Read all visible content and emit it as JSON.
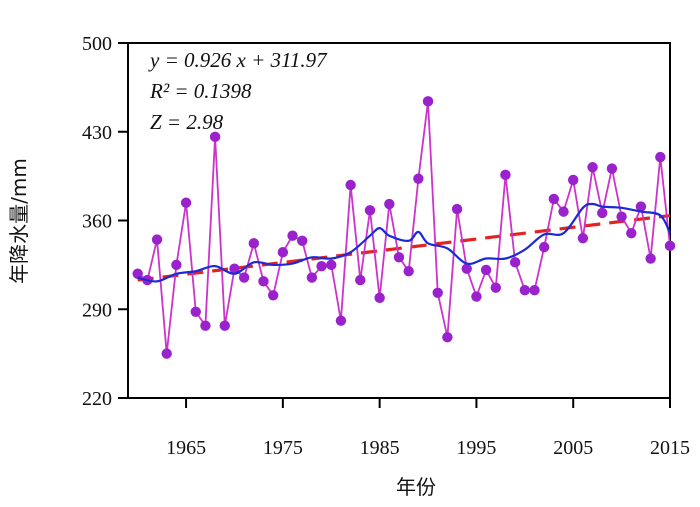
{
  "chart_data": {
    "type": "line",
    "title": "",
    "xlabel": "年份",
    "ylabel": "年降水量/mm",
    "xlim": [
      1959,
      2015
    ],
    "ylim": [
      220,
      500
    ],
    "x_ticks": [
      1965,
      1975,
      1985,
      1995,
      2005,
      2015
    ],
    "y_ticks": [
      220,
      290,
      360,
      430,
      500
    ],
    "annotations": [
      "y = 0.926 x + 311.97",
      "R² = 0.1398",
      "Z = 2.98"
    ],
    "grid": false,
    "colors": {
      "observed": "#cc33cc",
      "marker": "#9922cc",
      "trend": "#e52222",
      "smooth": "#1a2bd6"
    },
    "series": [
      {
        "style": "line+markers",
        "x": [
          1960,
          1961,
          1962,
          1963,
          1964,
          1965,
          1966,
          1967,
          1968,
          1969,
          1970,
          1971,
          1972,
          1973,
          1974,
          1975,
          1976,
          1977,
          1978,
          1979,
          1980,
          1981,
          1982,
          1983,
          1984,
          1985,
          1986,
          1987,
          1988,
          1989,
          1990,
          1991,
          1992,
          1993,
          1994,
          1995,
          1996,
          1997,
          1998,
          1999,
          2000,
          2001,
          2002,
          2003,
          2004,
          2005,
          2006,
          2007,
          2008,
          2009,
          2010,
          2011,
          2012,
          2013,
          2014,
          2015
        ],
        "y": [
          318,
          313,
          345,
          255,
          325,
          374,
          288,
          277,
          426,
          277,
          322,
          315,
          342,
          312,
          301,
          335,
          348,
          344,
          315,
          324,
          325,
          281,
          388,
          313,
          368,
          299,
          373,
          331,
          320,
          393,
          454,
          303,
          268,
          369,
          322,
          300,
          321,
          307,
          396,
          327,
          305,
          305,
          339,
          377,
          367,
          392,
          346,
          402,
          366,
          401,
          363,
          350,
          371,
          330,
          410,
          340
        ]
      },
      {
        "style": "dashed",
        "x": [
          1960,
          2015
        ],
        "y": [
          313.0,
          363.9
        ]
      },
      {
        "style": "smooth",
        "x": [
          1960,
          1962,
          1964,
          1966,
          1968,
          1970,
          1972,
          1974,
          1976,
          1978,
          1980,
          1982,
          1984,
          1985,
          1986,
          1988,
          1989,
          1990,
          1992,
          1994,
          1996,
          1998,
          2000,
          2002,
          2004,
          2006,
          2007,
          2008,
          2010,
          2012,
          2014,
          2015
        ],
        "y": [
          315,
          312,
          318,
          320,
          324,
          318,
          327,
          325,
          326,
          331,
          330,
          335,
          348,
          354,
          348,
          344,
          351,
          342,
          338,
          326,
          330,
          330,
          337,
          349,
          350,
          370,
          373,
          371,
          370,
          367,
          364,
          350
        ]
      }
    ]
  }
}
